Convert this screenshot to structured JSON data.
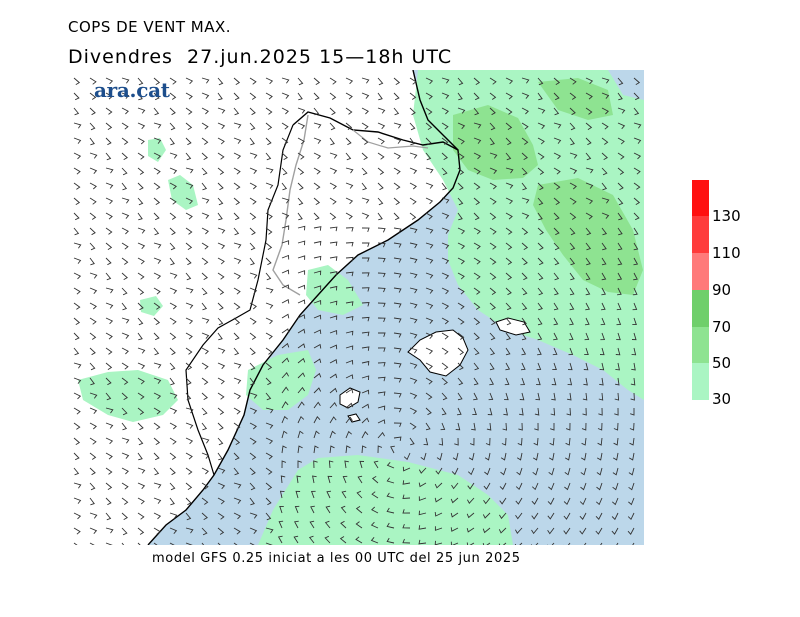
{
  "header": {
    "variable": "COPS DE VENT MAX.",
    "day": "Divendres",
    "date": "27.jun.2025",
    "time": "15—18h UTC"
  },
  "footer": {
    "model": "model GFS 0.25 iniciat a les 00 UTC del 25 jun 2025"
  },
  "logo": {
    "text": "ara.cat"
  },
  "legend": {
    "units_levels": [
      "30",
      "50",
      "70",
      "90",
      "110",
      "130"
    ],
    "bands": [
      {
        "from": 30,
        "to": 50,
        "color": "#aaf5c3"
      },
      {
        "from": 50,
        "to": 70,
        "color": "#8ee391"
      },
      {
        "from": 70,
        "to": 90,
        "color": "#6fcf6b"
      },
      {
        "from": 90,
        "to": 110,
        "color": "#ff7a7a"
      },
      {
        "from": 110,
        "to": 130,
        "color": "#ff3b3b"
      },
      {
        "from": 130,
        "to": 150,
        "color": "#ff1010"
      }
    ]
  },
  "colors": {
    "land": "#ffffff",
    "sea": "#bcd7ea",
    "gust_30_50": "#aaf5c3",
    "gust_50_70": "#8ee391",
    "borders": "#000000",
    "regional_borders": "#a0a0a0"
  }
}
